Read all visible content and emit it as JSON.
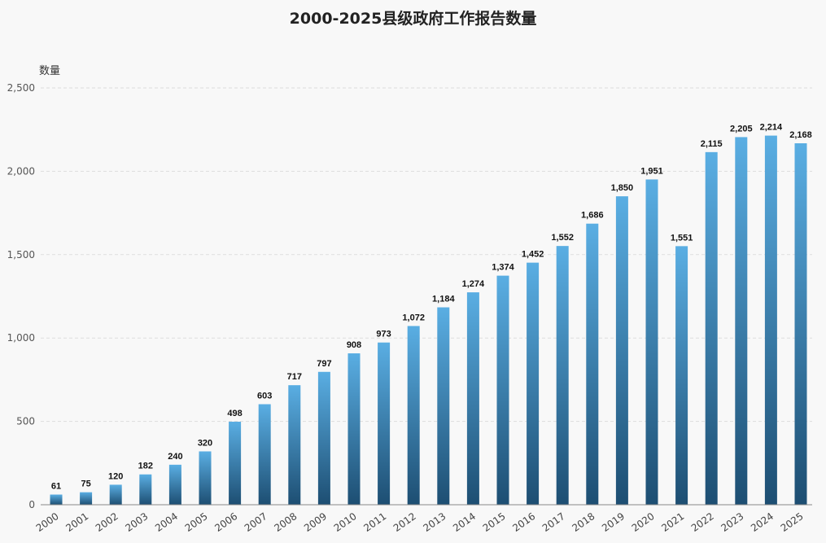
{
  "chart_data": {
    "type": "bar",
    "title": "2000-2025县级政府工作报告数量",
    "xlabel": "",
    "ylabel": "数量",
    "ylim": [
      0,
      2500
    ],
    "yticks": [
      0,
      500,
      1000,
      1500,
      2000,
      2500
    ],
    "ytick_labels": [
      "0",
      "500",
      "1,000",
      "1,500",
      "2,000",
      "2,500"
    ],
    "grid": true,
    "categories": [
      "2000",
      "2001",
      "2002",
      "2003",
      "2004",
      "2005",
      "2006",
      "2007",
      "2008",
      "2009",
      "2010",
      "2011",
      "2012",
      "2013",
      "2014",
      "2015",
      "2016",
      "2017",
      "2018",
      "2019",
      "2020",
      "2021",
      "2022",
      "2023",
      "2024",
      "2025"
    ],
    "values": [
      61,
      75,
      120,
      182,
      240,
      320,
      498,
      603,
      717,
      797,
      908,
      973,
      1072,
      1184,
      1274,
      1374,
      1452,
      1552,
      1686,
      1850,
      1951,
      1551,
      2115,
      2205,
      2214,
      2168
    ],
    "value_labels": [
      "61",
      "75",
      "120",
      "182",
      "240",
      "320",
      "498",
      "603",
      "717",
      "797",
      "908",
      "973",
      "1,072",
      "1,184",
      "1,274",
      "1,374",
      "1,452",
      "1,552",
      "1,686",
      "1,850",
      "1,951",
      "1,551",
      "2,115",
      "2,205",
      "2,214",
      "2,168"
    ],
    "colors": {
      "bar_top": "#5aaee3",
      "bar_bottom": "#1d4e72",
      "grid": "#dddddd",
      "axis": "#888888"
    }
  }
}
